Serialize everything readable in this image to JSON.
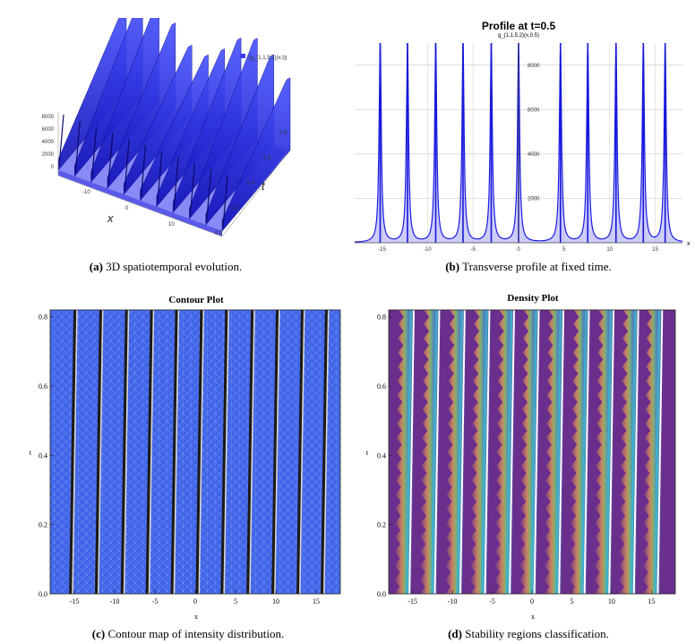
{
  "captions": [
    {
      "label": "(a)",
      "text": "3D spatiotemporal evolution."
    },
    {
      "label": "(b)",
      "text": "Transverse profile at fixed time."
    },
    {
      "label": "(c)",
      "text": "Contour map of intensity distribution."
    },
    {
      "label": "(d)",
      "text": "Stability regions classification."
    }
  ],
  "colors": {
    "blue": "#1a1ae6",
    "contour_fill": "#3f64e8",
    "density_bg": "#6a2f8c"
  },
  "chart_data": [
    {
      "type": "surface3d",
      "title": "",
      "legend": "|g_{1,1,5,2}(x,t)|",
      "legend_placement": "top-right",
      "zticks": [
        "8000",
        "6000",
        "4000",
        "2000",
        "0"
      ],
      "xticks": [
        "-10",
        "0",
        "10"
      ],
      "tticks": [
        "0.8",
        "0.6",
        "0.4",
        "0.2",
        "0.0"
      ],
      "xlabel": "x",
      "ylabel": "t",
      "ridges": 11,
      "zlim": [
        0,
        8500
      ]
    },
    {
      "type": "line",
      "title": "Profile at t=0.5",
      "ylabel": "g_{1,1,5,2}(x,0.5)",
      "xlabel": "x",
      "xlim": [
        -18,
        18
      ],
      "ylim": [
        0,
        9000
      ],
      "xticks": [
        -15,
        -10,
        -5,
        0,
        5,
        10,
        15
      ],
      "yticks": [
        2000,
        4000,
        6000,
        8000
      ],
      "peaks_x": [
        -15.2,
        -12.2,
        -9.1,
        -6.1,
        -3.0,
        0.0,
        4.6,
        7.6,
        10.7,
        13.7,
        16.1
      ],
      "peak_height": 9000,
      "width": 0.14
    },
    {
      "type": "contour",
      "title": "Contour Plot",
      "xlabel": "x",
      "ylabel": "t",
      "xlim": [
        -18,
        18
      ],
      "ylim": [
        0,
        0.82
      ],
      "xticks": [
        -15,
        -10,
        -5,
        0,
        5,
        10,
        15
      ],
      "yticks": [
        0.0,
        0.2,
        0.4,
        0.6,
        0.8
      ],
      "ridges_x": [
        -15.4,
        -12.2,
        -9.0,
        -5.9,
        -2.8,
        0.3,
        3.4,
        6.6,
        9.7,
        12.8,
        15.8
      ]
    },
    {
      "type": "heatmap",
      "title": "Density Plot",
      "xlabel": "x",
      "ylabel": "t",
      "xlim": [
        -18,
        18
      ],
      "ylim": [
        0,
        0.82
      ],
      "xticks": [
        -15,
        -10,
        -5,
        0,
        5,
        10,
        15
      ],
      "yticks": [
        0.0,
        0.2,
        0.4,
        0.6,
        0.8
      ],
      "ridges_x": [
        -15.4,
        -12.2,
        -9.0,
        -5.9,
        -2.8,
        0.3,
        3.4,
        6.6,
        9.7,
        12.8,
        15.8
      ]
    }
  ]
}
